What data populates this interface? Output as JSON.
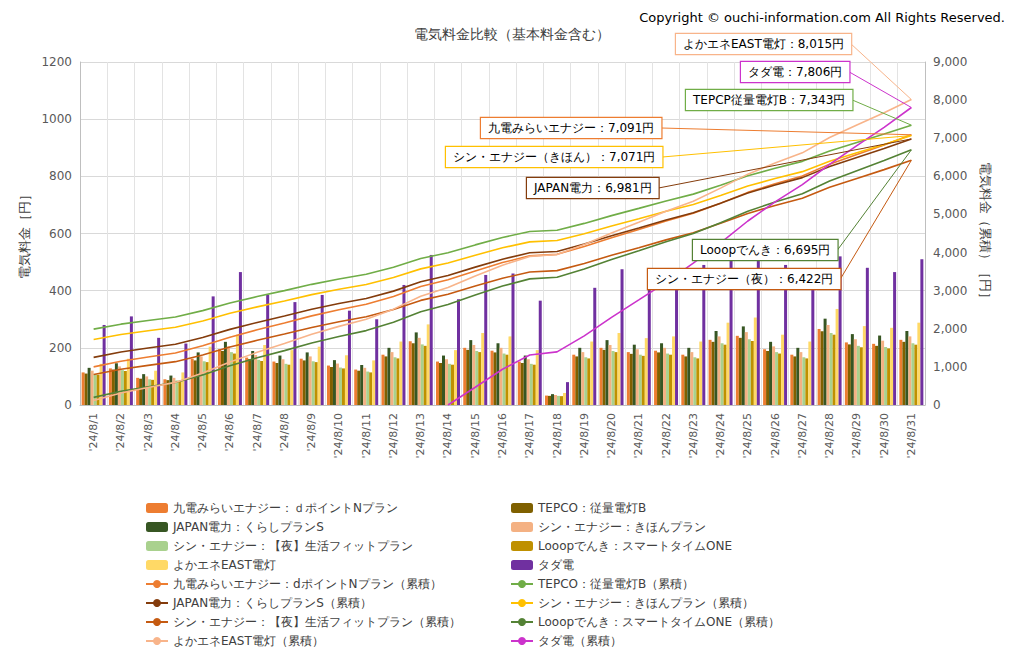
{
  "chart_data": {
    "type": "bar",
    "title": "電気料金比較（基本料金含む）",
    "subtitle": "Copyright © ouchi-information.com All Rights Reserved.",
    "y_label": "電気料金［円］",
    "y2_label": "電気料金（累積）［円］",
    "categories": [
      "'24/8/1",
      "'24/8/2",
      "'24/8/3",
      "'24/8/4",
      "'24/8/5",
      "'24/8/6",
      "'24/8/7",
      "'24/8/8",
      "'24/8/9",
      "'24/8/10",
      "'24/8/11",
      "'24/8/12",
      "'24/8/13",
      "'24/8/14",
      "'24/8/15",
      "'24/8/16",
      "'24/8/17",
      "'24/8/18",
      "'24/8/19",
      "'24/8/20",
      "'24/8/21",
      "'24/8/22",
      "'24/8/23",
      "'24/8/24",
      "'24/8/25",
      "'24/8/26",
      "'24/8/27",
      "'24/8/28",
      "'24/8/29",
      "'24/8/30",
      "'24/8/31"
    ],
    "ylim": [
      0,
      1200
    ],
    "yticks": [
      0,
      200,
      400,
      600,
      800,
      1000,
      1200
    ],
    "y2lim": [
      0,
      9000
    ],
    "y2ticks": [
      0,
      {
        "value": 1000,
        "label": "1,000"
      },
      {
        "value": 2000,
        "label": "2,000"
      },
      {
        "value": 3000,
        "label": "3,000"
      },
      {
        "value": 4000,
        "label": "4,000"
      },
      {
        "value": 5000,
        "label": "5,000"
      },
      {
        "value": 6000,
        "label": "6,000"
      },
      {
        "value": 7000,
        "label": "7,000"
      },
      {
        "value": 8000,
        "label": "8,000"
      },
      {
        "value": 9000,
        "label": "9,000"
      }
    ],
    "grid": true,
    "legend": "bottom",
    "series": [
      {
        "name": "九電みらいエナジー：ｄポイントNプラン",
        "type": "bar",
        "color": "#ed7d31",
        "values": [
          114,
          128,
          95,
          90,
          162,
          195,
          166,
          152,
          162,
          138,
          124,
          176,
          223,
          152,
          200,
          190,
          152,
          33,
          176,
          200,
          185,
          190,
          176,
          228,
          242,
          195,
          176,
          266,
          219,
          214,
          228
        ]
      },
      {
        "name": "TEPCO：従量電灯B",
        "type": "bar",
        "color": "#7f6000",
        "values": [
          110,
          124,
          92,
          87,
          156,
          189,
          161,
          147,
          156,
          133,
          120,
          170,
          216,
          147,
          193,
          184,
          147,
          32,
          170,
          193,
          179,
          184,
          170,
          221,
          235,
          189,
          170,
          258,
          212,
          207,
          221
        ]
      },
      {
        "name": "JAPAN電力：くらしプランS",
        "type": "bar",
        "color": "#375623",
        "values": [
          130,
          146,
          108,
          103,
          184,
          221,
          189,
          173,
          184,
          157,
          140,
          200,
          254,
          173,
          227,
          216,
          173,
          38,
          200,
          227,
          211,
          216,
          200,
          259,
          275,
          221,
          200,
          302,
          248,
          243,
          259
        ]
      },
      {
        "name": "シン・エナジー：きほんプラン",
        "type": "bar",
        "color": "#f4b183",
        "values": [
          120,
          135,
          100,
          95,
          170,
          205,
          175,
          160,
          170,
          145,
          130,
          185,
          235,
          160,
          210,
          200,
          160,
          35,
          185,
          210,
          195,
          200,
          185,
          240,
          255,
          205,
          185,
          280,
          230,
          225,
          240
        ]
      },
      {
        "name": "シン・エナジー：【夜】生活フィットプラン",
        "type": "bar",
        "color": "#a9d18e",
        "values": [
          108,
          122,
          90,
          86,
          153,
          185,
          158,
          144,
          153,
          131,
          117,
          167,
          212,
          144,
          189,
          180,
          144,
          32,
          167,
          189,
          176,
          180,
          167,
          216,
          230,
          185,
          167,
          252,
          207,
          203,
          216
        ]
      },
      {
        "name": "Looopでんき：スマートタイムONE",
        "type": "bar",
        "color": "#bf9000",
        "values": [
          106,
          119,
          88,
          84,
          150,
          180,
          154,
          141,
          150,
          128,
          114,
          163,
          207,
          141,
          185,
          176,
          141,
          31,
          163,
          185,
          172,
          176,
          163,
          211,
          224,
          180,
          163,
          246,
          202,
          198,
          211
        ]
      },
      {
        "name": "よかエネEAST電灯",
        "type": "bar",
        "color": "#ffd966",
        "values": [
          144,
          162,
          120,
          114,
          204,
          246,
          210,
          192,
          204,
          174,
          156,
          222,
          282,
          192,
          252,
          240,
          192,
          42,
          222,
          252,
          234,
          240,
          222,
          288,
          306,
          246,
          222,
          336,
          276,
          270,
          288
        ]
      },
      {
        "name": "タダ電",
        "type": "bar",
        "color": "#7030a0",
        "values": [
          280,
          310,
          235,
          215,
          380,
          465,
          385,
          360,
          385,
          330,
          300,
          420,
          525,
          370,
          455,
          460,
          365,
          80,
          410,
          475,
          445,
          450,
          490,
          520,
          560,
          490,
          440,
          520,
          480,
          465,
          510
        ]
      },
      {
        "name": "九電みらいエナジー：dポイントNプラン（累積）",
        "type": "line",
        "axis": "y2",
        "color": "#ed7d31",
        "values": [
          1000,
          1149,
          1260,
          1365,
          1553,
          1780,
          1973,
          2150,
          2338,
          2499,
          2642,
          2847,
          3107,
          3284,
          3516,
          3737,
          3914,
          3953,
          4158,
          4390,
          4606,
          4827,
          5031,
          5297,
          5579,
          5806,
          6010,
          6320,
          6574,
          6823,
          7091
        ]
      },
      {
        "name": "TEPCO：従量電灯B（累積）",
        "type": "line",
        "axis": "y2",
        "color": "#70ad47",
        "values": [
          1990,
          2121,
          2218,
          2311,
          2476,
          2675,
          2845,
          3001,
          3166,
          3307,
          3433,
          3613,
          3842,
          3997,
          4201,
          4396,
          4551,
          4585,
          4765,
          4969,
          5159,
          5353,
          5533,
          5766,
          6014,
          6213,
          6393,
          6665,
          6889,
          7108,
          7343
        ]
      },
      {
        "name": "JAPAN電力：くらしプランS（累積）",
        "type": "line",
        "axis": "y2",
        "color": "#843c0c",
        "values": [
          1250,
          1391,
          1495,
          1594,
          1771,
          1984,
          2166,
          2333,
          2510,
          2661,
          2796,
          2988,
          3233,
          3400,
          3618,
          3826,
          3993,
          4029,
          4222,
          4441,
          4644,
          4852,
          5044,
          5294,
          5560,
          5773,
          5966,
          6257,
          6497,
          6731,
          6981
        ]
      },
      {
        "name": "シン・エナジー：きほんプラン（累積）",
        "type": "line",
        "axis": "y2",
        "color": "#ffc000",
        "values": [
          1720,
          1851,
          1948,
          2041,
          2206,
          2405,
          2575,
          2731,
          2896,
          3037,
          3163,
          3343,
          3572,
          3727,
          3931,
          4126,
          4281,
          4315,
          4495,
          4699,
          4889,
          5083,
          5263,
          5496,
          5744,
          5943,
          6123,
          6395,
          6619,
          6838,
          7071
        ]
      },
      {
        "name": "シン・エナジー：【夜】生活フィットプラン（累積）",
        "type": "line",
        "axis": "y2",
        "color": "#c55a11",
        "values": [
          800,
          938,
          1040,
          1137,
          1311,
          1520,
          1698,
          1862,
          2035,
          2183,
          2316,
          2505,
          2745,
          2908,
          3123,
          3327,
          3490,
          3526,
          3715,
          3929,
          4128,
          4333,
          4522,
          4767,
          5027,
          5236,
          5425,
          5711,
          5946,
          6176,
          6422
        ]
      },
      {
        "name": "Looopでんき：スマートタイムONE（累積）",
        "type": "line",
        "axis": "y2",
        "color": "#548235",
        "values": [
          200,
          359,
          477,
          589,
          790,
          1032,
          1238,
          1427,
          1628,
          1799,
          1952,
          2171,
          2448,
          2637,
          2885,
          3121,
          3309,
          3351,
          3569,
          3817,
          4047,
          4283,
          4501,
          4784,
          5085,
          5327,
          5545,
          5876,
          6147,
          6413,
          6695
        ]
      },
      {
        "name": "よかエネEAST電灯（累積）",
        "type": "line",
        "axis": "y2",
        "color": "#f8b48a",
        "values": [
          120,
          314,
          457,
          593,
          837,
          1131,
          1382,
          1611,
          1855,
          2063,
          2249,
          2515,
          2852,
          3081,
          3382,
          3669,
          3899,
          3949,
          4214,
          4515,
          4795,
          5082,
          5347,
          5691,
          6057,
          6351,
          6616,
          7018,
          7347,
          7670,
          8015
        ]
      },
      {
        "name": "タダ電（累積）",
        "type": "line",
        "axis": "y2",
        "color": "#cc33cc",
        "values": [
          null,
          null,
          null,
          null,
          null,
          null,
          null,
          null,
          null,
          null,
          null,
          null,
          null,
          0,
          466,
          938,
          1312,
          1394,
          1814,
          2301,
          2757,
          3218,
          3721,
          4254,
          4828,
          5330,
          5781,
          6314,
          6806,
          7283,
          7806
        ]
      }
    ],
    "annotations": [
      {
        "text": "よかエネEAST電灯：8,015円",
        "x": "'24/8/31",
        "y": 8015,
        "color": "#f8b48a"
      },
      {
        "text": "タダ電：7,806円",
        "x": "'24/8/31",
        "y": 7806,
        "color": "#cc33cc"
      },
      {
        "text": "TEPCP従量電灯B：7,343円",
        "x": "'24/8/31",
        "y": 7343,
        "color": "#70ad47"
      },
      {
        "text": "九電みらいエナジー：7,091円",
        "x": "'24/8/31",
        "y": 7091,
        "color": "#ed7d31"
      },
      {
        "text": "シン・エナジー（きほん）：7,071円",
        "x": "'24/8/31",
        "y": 7071,
        "color": "#ffc000"
      },
      {
        "text": "JAPAN電力：6,981円",
        "x": "'24/8/31",
        "y": 6981,
        "color": "#843c0c"
      },
      {
        "text": "Looopでんき：6,695円",
        "x": "'24/8/31",
        "y": 6695,
        "color": "#548235"
      },
      {
        "text": "シン・エナジー（夜）：6,422円",
        "x": "'24/8/31",
        "y": 6422,
        "color": "#c55a11"
      }
    ]
  }
}
